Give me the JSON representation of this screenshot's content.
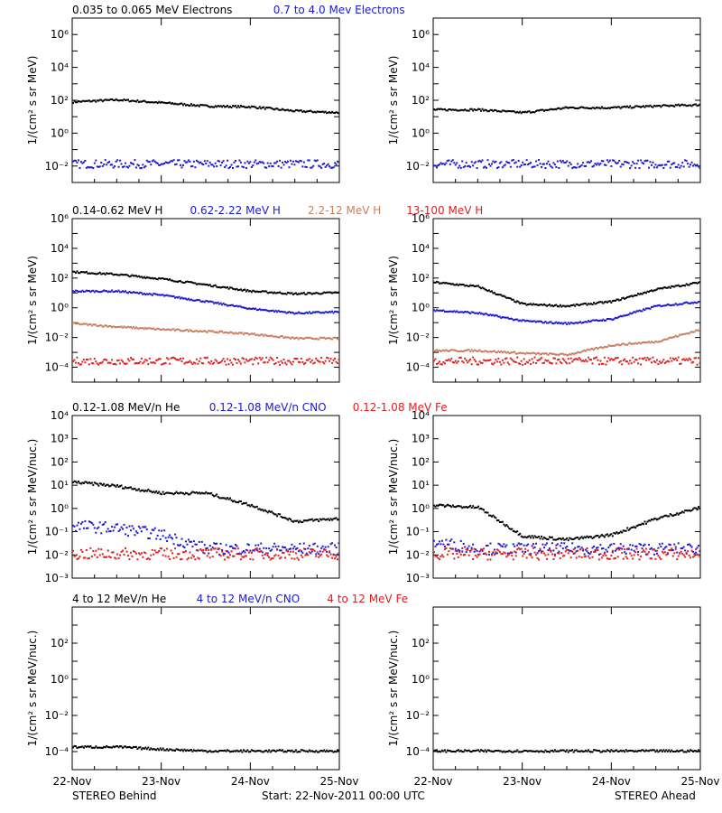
{
  "chart_data": [
    {
      "type": "scatter",
      "spacecraft": "STEREO Behind",
      "legend": [
        {
          "name": "0.035 to 0.065 MeV Electrons",
          "color": "#000000"
        },
        {
          "name": "0.7 to 4.0 Mev Electrons",
          "color": "#1a1ad0"
        }
      ],
      "ylabel": "1/(cm² s sr MeV)",
      "yscale": "log",
      "ylim": [
        0.001,
        10000000
      ],
      "yticks": [
        "10⁻²",
        "10⁰",
        "10²",
        "10⁴",
        "10⁶"
      ],
      "x": [
        "22-Nov",
        "22-Nov 12h",
        "23-Nov",
        "23-Nov 12h",
        "24-Nov",
        "24-Nov 12h",
        "25-Nov"
      ],
      "series": [
        {
          "name": "0.035 to 0.065 MeV Electrons",
          "values": [
            90,
            120,
            80,
            50,
            45,
            25,
            20
          ]
        },
        {
          "name": "0.7 to 4.0 Mev Electrons",
          "values": [
            0.015,
            0.015,
            0.015,
            0.015,
            0.015,
            0.015,
            0.015
          ]
        }
      ]
    },
    {
      "type": "scatter",
      "spacecraft": "STEREO Ahead",
      "ylabel": "1/(cm² s sr MeV)",
      "yscale": "log",
      "ylim": [
        0.001,
        10000000
      ],
      "yticks": [
        "10⁻²",
        "10⁰",
        "10²",
        "10⁴",
        "10⁶"
      ],
      "x": [
        "22-Nov",
        "22-Nov 12h",
        "23-Nov",
        "23-Nov 12h",
        "24-Nov",
        "24-Nov 12h",
        "25-Nov"
      ],
      "series": [
        {
          "name": "0.035 to 0.065 MeV Electrons",
          "values": [
            30,
            30,
            20,
            40,
            40,
            50,
            60
          ]
        },
        {
          "name": "0.7 to 4.0 Mev Electrons",
          "values": [
            0.015,
            0.015,
            0.015,
            0.015,
            0.015,
            0.015,
            0.015
          ]
        }
      ]
    },
    {
      "type": "scatter",
      "spacecraft": "STEREO Behind",
      "legend": [
        {
          "name": "0.14-0.62 MeV H",
          "color": "#000000"
        },
        {
          "name": "0.62-2.22 MeV H",
          "color": "#1a1ad0"
        },
        {
          "name": "2.2-12 MeV H",
          "color": "#c87f60"
        },
        {
          "name": "13-100 MeV H",
          "color": "#e02020"
        }
      ],
      "ylabel": "1/(cm² s sr MeV)",
      "yscale": "log",
      "ylim": [
        1e-05,
        1000000
      ],
      "yticks": [
        "10⁻⁴",
        "10⁻²",
        "10⁰",
        "10²",
        "10⁴",
        "10⁶"
      ],
      "x": [
        "22-Nov",
        "22-Nov 12h",
        "23-Nov",
        "23-Nov 12h",
        "24-Nov",
        "24-Nov 12h",
        "25-Nov"
      ],
      "series": [
        {
          "name": "0.14-0.62 MeV H",
          "values": [
            300,
            200,
            100,
            40,
            15,
            10,
            12
          ]
        },
        {
          "name": "0.62-2.22 MeV H",
          "values": [
            15,
            15,
            8,
            3,
            1,
            0.5,
            0.6
          ]
        },
        {
          "name": "2.2-12 MeV H",
          "values": [
            0.1,
            0.06,
            0.04,
            0.03,
            0.02,
            0.01,
            0.01
          ]
        },
        {
          "name": "13-100 MeV H",
          "values": [
            0.0003,
            0.0003,
            0.0003,
            0.0003,
            0.0003,
            0.0003,
            0.0003
          ]
        }
      ]
    },
    {
      "type": "scatter",
      "spacecraft": "STEREO Ahead",
      "ylabel": "1/(cm² s sr MeV)",
      "yscale": "log",
      "ylim": [
        1e-05,
        1000000
      ],
      "yticks": [
        "10⁻⁴",
        "10⁻²",
        "10⁰",
        "10²",
        "10⁴",
        "10⁶"
      ],
      "x": [
        "22-Nov",
        "22-Nov 12h",
        "23-Nov",
        "23-Nov 12h",
        "24-Nov",
        "24-Nov 12h",
        "25-Nov"
      ],
      "series": [
        {
          "name": "0.14-0.62 MeV H",
          "values": [
            60,
            30,
            2,
            1.5,
            3,
            20,
            60
          ]
        },
        {
          "name": "0.62-2.22 MeV H",
          "values": [
            0.8,
            0.5,
            0.15,
            0.1,
            0.2,
            1.5,
            3
          ]
        },
        {
          "name": "2.2-12 MeV H",
          "values": [
            0.0015,
            0.0015,
            0.001,
            0.0008,
            0.0035,
            0.006,
            0.04
          ]
        },
        {
          "name": "13-100 MeV H",
          "values": [
            0.0003,
            0.0003,
            0.0003,
            0.0003,
            0.0003,
            0.0003,
            0.0003
          ]
        }
      ]
    },
    {
      "type": "scatter",
      "spacecraft": "STEREO Behind",
      "legend": [
        {
          "name": "0.12-1.08 MeV/n He",
          "color": "#000000"
        },
        {
          "name": "0.12-1.08 MeV/n CNO",
          "color": "#1a1ad0"
        },
        {
          "name": "0.12-1.08 MeV Fe",
          "color": "#e02020"
        }
      ],
      "ylabel": "1/(cm² s sr MeV/nuc.)",
      "yscale": "log",
      "ylim": [
        0.001,
        10000
      ],
      "yticks": [
        "10⁻³",
        "10⁻²",
        "10⁻¹",
        "10⁰",
        "10¹",
        "10²",
        "10³",
        "10⁴"
      ],
      "x": [
        "22-Nov",
        "22-Nov 12h",
        "23-Nov",
        "23-Nov 12h",
        "24-Nov",
        "24-Nov 12h",
        "25-Nov"
      ],
      "series": [
        {
          "name": "0.12-1.08 MeV/n He",
          "values": [
            15,
            10,
            5,
            5,
            1.5,
            0.3,
            0.4
          ]
        },
        {
          "name": "0.12-1.08 MeV/n CNO",
          "values": [
            0.2,
            0.15,
            0.08,
            0.02,
            0.02,
            0.02,
            0.02
          ]
        },
        {
          "name": "0.12-1.08 MeV Fe",
          "values": [
            0.012,
            0.012,
            0.012,
            0.012,
            0.012,
            0.012,
            0.012
          ]
        }
      ]
    },
    {
      "type": "scatter",
      "spacecraft": "STEREO Ahead",
      "ylabel": "1/(cm² s sr MeV/nuc.)",
      "yscale": "log",
      "ylim": [
        0.001,
        10000
      ],
      "yticks": [
        "10⁻³",
        "10⁻²",
        "10⁻¹",
        "10⁰",
        "10¹",
        "10²",
        "10³",
        "10⁴"
      ],
      "x": [
        "22-Nov",
        "22-Nov 12h",
        "23-Nov",
        "23-Nov 12h",
        "24-Nov",
        "24-Nov 12h",
        "25-Nov"
      ],
      "series": [
        {
          "name": "0.12-1.08 MeV/n He",
          "values": [
            1.5,
            1.2,
            0.07,
            0.05,
            0.08,
            0.4,
            1.2
          ]
        },
        {
          "name": "0.12-1.08 MeV/n CNO",
          "values": [
            0.04,
            0.02,
            0.02,
            0.02,
            0.02,
            0.02,
            0.02
          ]
        },
        {
          "name": "0.12-1.08 MeV Fe",
          "values": [
            0.012,
            0.012,
            0.012,
            0.012,
            0.012,
            0.012,
            0.012
          ]
        }
      ]
    },
    {
      "type": "scatter",
      "spacecraft": "STEREO Behind",
      "legend": [
        {
          "name": "4 to 12 MeV/n He",
          "color": "#000000"
        },
        {
          "name": "4 to 12 MeV/n CNO",
          "color": "#1a1ad0"
        },
        {
          "name": "4 to 12 MeV Fe",
          "color": "#e02020"
        }
      ],
      "ylabel": "1/(cm² s sr MeV/nuc.)",
      "yscale": "log",
      "ylim": [
        1e-05,
        10000
      ],
      "yticks": [
        "10⁻⁴",
        "10⁻²",
        "10⁰",
        "10²"
      ],
      "x": [
        "22-Nov",
        "22-Nov 12h",
        "23-Nov",
        "23-Nov 12h",
        "24-Nov",
        "24-Nov 12h",
        "25-Nov"
      ],
      "series": [
        {
          "name": "4 to 12 MeV/n He",
          "values": [
            0.0002,
            0.0002,
            0.00015,
            0.00012,
            0.00012,
            0.00012,
            0.00012
          ]
        }
      ]
    },
    {
      "type": "scatter",
      "spacecraft": "STEREO Ahead",
      "ylabel": "1/(cm² s sr MeV/nuc.)",
      "yscale": "log",
      "ylim": [
        1e-05,
        10000
      ],
      "yticks": [
        "10⁻⁴",
        "10⁻²",
        "10⁰",
        "10²"
      ],
      "x": [
        "22-Nov",
        "22-Nov 12h",
        "23-Nov",
        "23-Nov 12h",
        "24-Nov",
        "24-Nov 12h",
        "25-Nov"
      ],
      "series": [
        {
          "name": "4 to 12 MeV/n He",
          "values": [
            0.00012,
            0.00012,
            0.00012,
            0.00012,
            0.00012,
            0.00012,
            0.00012
          ]
        }
      ]
    }
  ],
  "xticks": [
    "22-Nov",
    "23-Nov",
    "24-Nov",
    "25-Nov"
  ],
  "footer": {
    "left": "STEREO Behind",
    "center": "Start: 22-Nov-2011 00:00 UTC",
    "right": "STEREO Ahead"
  }
}
